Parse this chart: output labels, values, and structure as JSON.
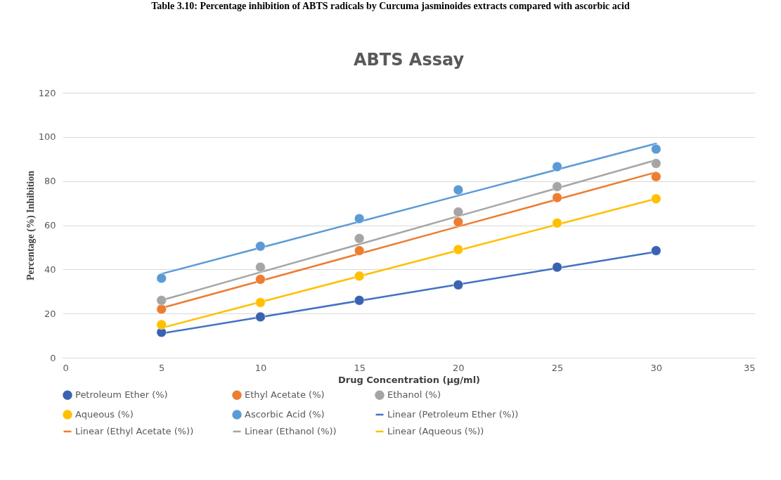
{
  "chart_data": {
    "type": "scatter",
    "title": "ABTS Assay",
    "xlabel": "Drug Concentration  (µg/ml)",
    "ylabel": "Percentage  (%) Inhibition",
    "annotations": [
      "Table 3.10: Percentage inhibition of ABTS radicals by Curcuma jasminoides extracts compared with ascorbic acid"
    ],
    "x": [
      5,
      10,
      15,
      20,
      25,
      30
    ],
    "xlim": [
      0,
      35
    ],
    "xticks": [
      0,
      5,
      10,
      15,
      20,
      25,
      30,
      35
    ],
    "ylim": [
      0,
      120
    ],
    "yticks": [
      0,
      20,
      40,
      60,
      80,
      100,
      120
    ],
    "grid": "y",
    "legend": "bottom",
    "series": [
      {
        "name": "Petroleum Ether (%)",
        "marker": "circle",
        "color": "#3a62b0",
        "values": [
          11.5,
          18.5,
          26,
          33,
          41,
          48.5
        ]
      },
      {
        "name": "Ethyl Acetate (%)",
        "marker": "circle",
        "color": "#ed7d31",
        "values": [
          22,
          35.5,
          48.5,
          61.5,
          72.5,
          82
        ]
      },
      {
        "name": "Ethanol (%)",
        "marker": "circle",
        "color": "#a5a5a5",
        "values": [
          26,
          41,
          54,
          66,
          77.5,
          88
        ]
      },
      {
        "name": "Aqueous (%)",
        "marker": "circle",
        "color": "#ffc000",
        "values": [
          15,
          25,
          37,
          49,
          61,
          72
        ]
      },
      {
        "name": "Ascorbic Acid (%)",
        "marker": "circle",
        "color": "#5b9bd5",
        "values": [
          36,
          50.5,
          63,
          76,
          86.5,
          94.5
        ]
      },
      {
        "name": "Linear (Petroleum Ether (%))",
        "type": "line",
        "marker": "none",
        "color": "#4472c4",
        "values": [
          11,
          18.4,
          25.8,
          33.2,
          40.6,
          48
        ]
      },
      {
        "name": "Linear (Ethyl Acetate (%))",
        "type": "line",
        "marker": "none",
        "color": "#ed7d31",
        "values": [
          22.5,
          34.8,
          47.1,
          59.4,
          71.7,
          84
        ]
      },
      {
        "name": "Linear (Ethanol (%))",
        "type": "line",
        "marker": "none",
        "color": "#a5a5a5",
        "values": [
          26,
          38.7,
          51.4,
          64.1,
          76.8,
          89.5
        ]
      },
      {
        "name": "Linear (Aqueous (%))",
        "type": "line",
        "marker": "none",
        "color": "#ffc000",
        "values": [
          13.5,
          25.2,
          36.9,
          48.6,
          60.3,
          72
        ]
      },
      {
        "type": "line",
        "marker": "none",
        "color": "#5b9bd5",
        "values": [
          38,
          49.8,
          61.6,
          73.4,
          85.2,
          97
        ]
      }
    ]
  }
}
